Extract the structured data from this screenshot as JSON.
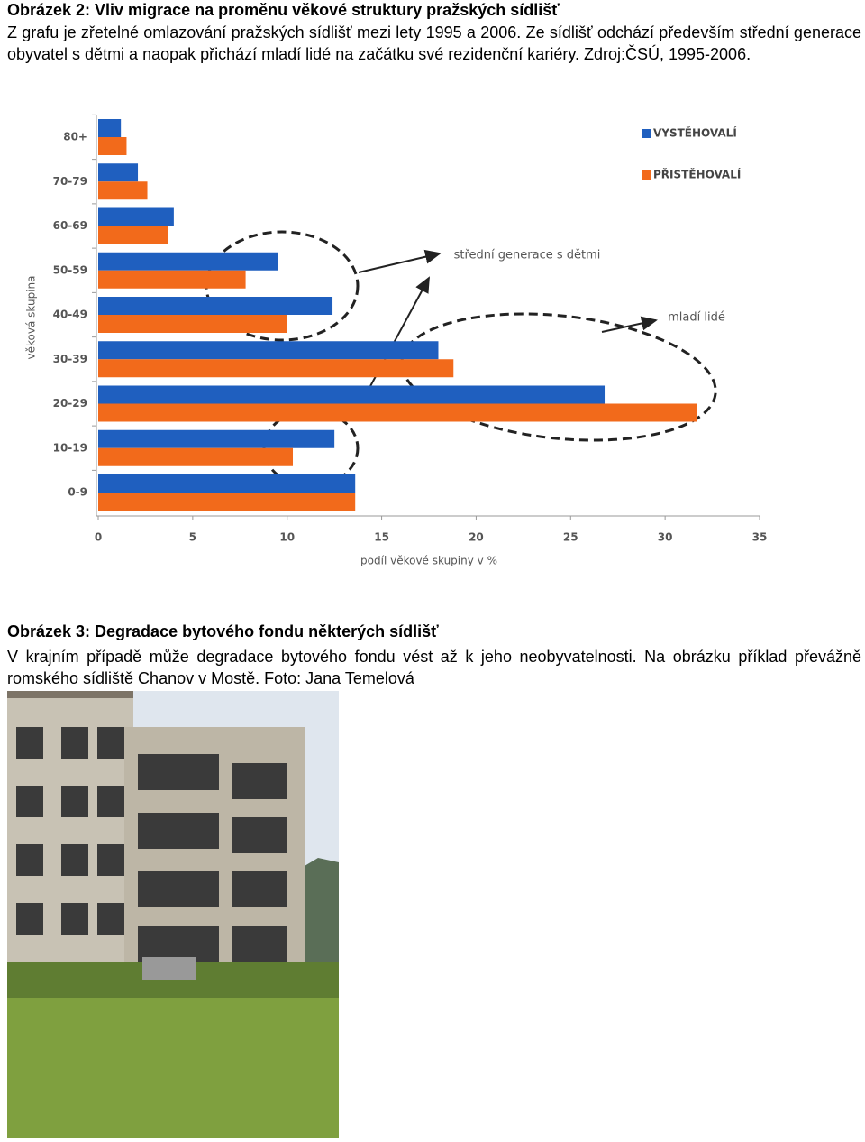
{
  "figure2": {
    "caption": "Obrázek 2: Vliv migrace na proměnu věkové struktury pražských sídlišť",
    "text": "Z grafu je zřetelné omlazování pražských sídlišť mezi lety 1995 a 2006. Ze sídlišť odchází především střední generace obyvatel s dětmi a naopak přichází mladí lidé na začátku své rezidenční kariéry. Zdroj:ČSÚ, 1995-2006."
  },
  "chart_data": {
    "type": "bar",
    "orientation": "horizontal",
    "x_label": "podíl věkové skupiny v %",
    "y_label": "věková skupina",
    "categories": [
      "80+",
      "70-79",
      "60-69",
      "50-59",
      "40-49",
      "30-39",
      "20-29",
      "10-19",
      "0-9"
    ],
    "series": [
      {
        "name": "VYSTĚHOVALÍ",
        "color": "#1f5fbf",
        "values": [
          1.2,
          2.1,
          4.0,
          9.5,
          12.4,
          18.0,
          26.8,
          12.5,
          13.6
        ]
      },
      {
        "name": "PŘISTĚHOVALÍ",
        "color": "#f26a1b",
        "values": [
          1.5,
          2.6,
          3.7,
          7.8,
          10.0,
          18.8,
          31.7,
          10.3,
          13.6
        ]
      }
    ],
    "xlim": [
      0,
      35
    ],
    "xticks": [
      0,
      5,
      10,
      15,
      20,
      25,
      30,
      35
    ],
    "grid": false,
    "legend": "top-right",
    "annotations": [
      "střední generace s dětmi",
      "mladí lidé"
    ]
  },
  "figure3": {
    "caption": "Obrázek 3: Degradace bytového fondu některých sídlišť",
    "text": "V krajním případě může degradace bytového fondu vést až k jeho neobyvatelnosti. Na obrázku příklad převážně romského sídliště Chanov v Mostě. Foto: Jana Temelová"
  }
}
